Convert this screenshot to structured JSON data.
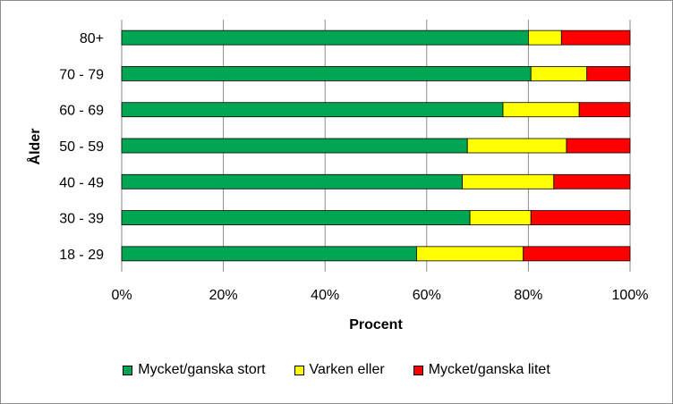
{
  "chart_data": {
    "type": "bar",
    "orientation": "horizontal",
    "stacked": true,
    "normalized": "percent",
    "categories": [
      "80+",
      "70 - 79",
      "60 - 69",
      "50 - 59",
      "40 - 49",
      "30 - 39",
      "18 - 29"
    ],
    "series": [
      {
        "name": "Mycket/ganska stort",
        "color": "#00a651",
        "values": [
          80,
          80.5,
          75,
          68,
          67,
          68.5,
          58
        ]
      },
      {
        "name": "Varken eller",
        "color": "#ffff00",
        "values": [
          6.5,
          11,
          15,
          19.5,
          18,
          12,
          21
        ]
      },
      {
        "name": "Mycket/ganska litet",
        "color": "#ff0000",
        "values": [
          13.5,
          8.5,
          10,
          12.5,
          15,
          19.5,
          21
        ]
      }
    ],
    "xlabel": "Procent",
    "ylabel": "Ålder",
    "xlim": [
      0,
      100
    ],
    "xticks": [
      "0%",
      "20%",
      "40%",
      "60%",
      "80%",
      "100%"
    ],
    "grid": "vertical",
    "legend_position": "bottom"
  }
}
